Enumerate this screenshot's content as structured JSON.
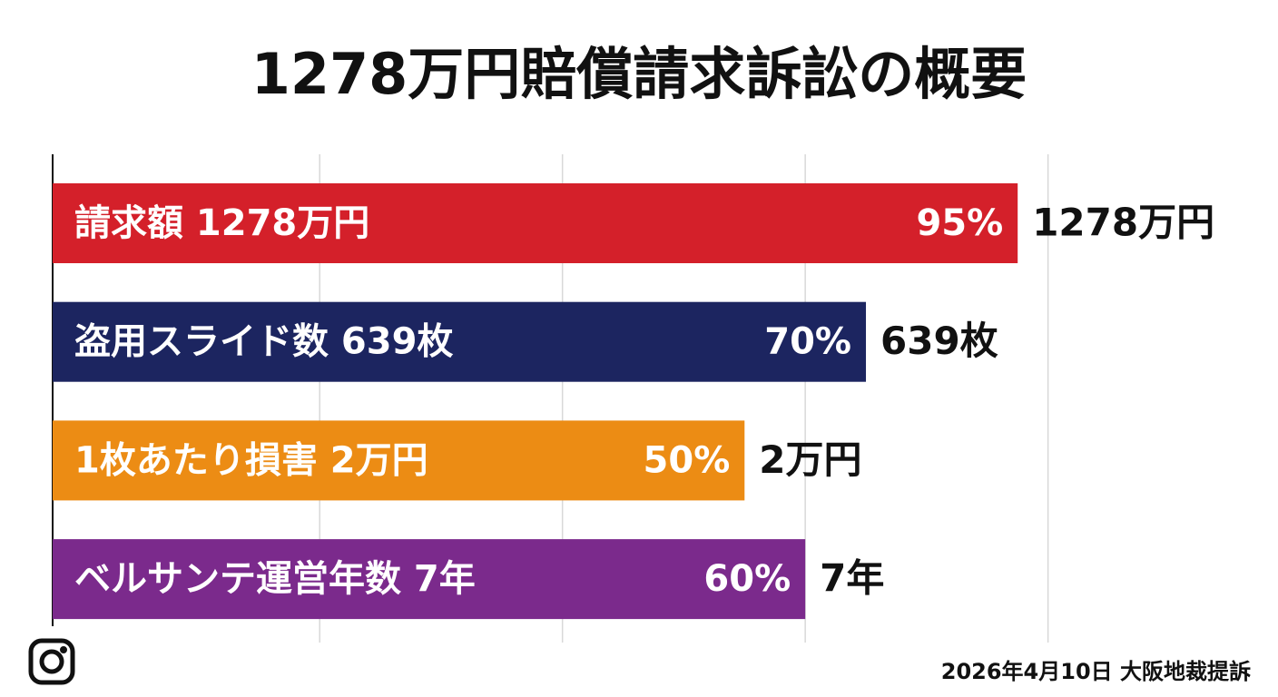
{
  "chart_data": {
    "type": "bar",
    "orientation": "horizontal",
    "title": "1278万円賠償請求訴訟の概要",
    "categories": [
      "請求額 1278万円",
      "盗用スライド数 639枚",
      "1枚あたり損害 2万円",
      "ベルサンテ運営年数 7年"
    ],
    "values": [
      95,
      70,
      50,
      60
    ],
    "value_labels": [
      "95%",
      "70%",
      "50%",
      "60%"
    ],
    "end_labels": [
      "1278万円",
      "639枚",
      "2万円",
      "7年"
    ],
    "colors": [
      "#d4202a",
      "#1c2560",
      "#ec8c14",
      "#7b2a8c"
    ],
    "xlim": [
      -64,
      102
    ],
    "xticks": [
      -20,
      20,
      60,
      100
    ],
    "grid": true,
    "footnote": "2026年4月10日 大阪地裁提訴"
  }
}
